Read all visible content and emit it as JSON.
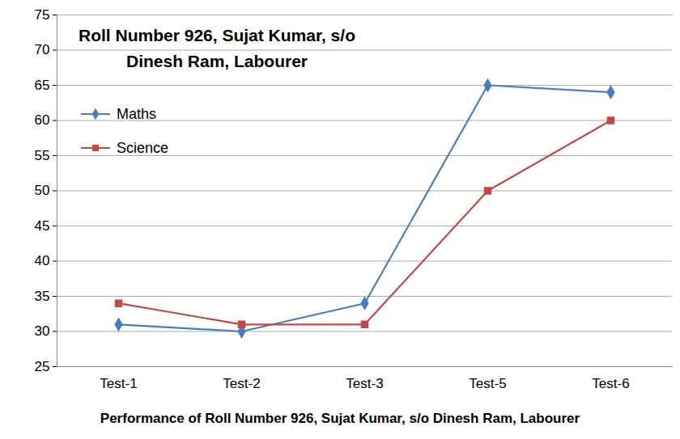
{
  "chart_data": {
    "type": "line",
    "title": "Roll Number 926, Sujat Kumar, s/o Dinesh Ram, Labourer",
    "x_label": "Performance of Roll Number 926, Sujat Kumar, s/o Dinesh Ram, Labourer",
    "categories": [
      "Test-1",
      "Test-2",
      "Test-3",
      "Test-5",
      "Test-6"
    ],
    "series": [
      {
        "name": "Maths",
        "color": "#4a7ebb",
        "marker": "diamond",
        "values": [
          31,
          30,
          34,
          65,
          64
        ]
      },
      {
        "name": "Science",
        "color": "#be4b48",
        "marker": "square",
        "values": [
          34,
          31,
          31,
          50,
          60
        ]
      }
    ],
    "ylim": [
      25,
      75
    ],
    "yticks": [
      25,
      30,
      35,
      40,
      45,
      50,
      55,
      60,
      65,
      70,
      75
    ],
    "grid": true,
    "legend": "top-left"
  }
}
